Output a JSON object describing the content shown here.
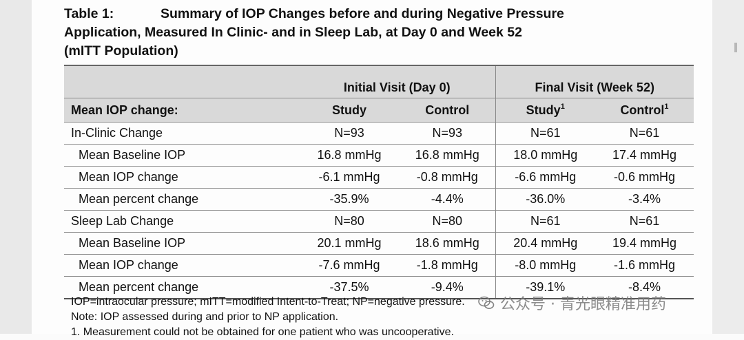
{
  "caption": {
    "number": "Table 1:",
    "lines": [
      "Summary of IOP Changes before and during Negative Pressure",
      "Application, Measured In Clinic- and in Sleep Lab, at Day 0 and Week 52",
      "(mITT Population)"
    ]
  },
  "table": {
    "group_headers": [
      "Initial Visit (Day 0)",
      "Final Visit (Week 52)"
    ],
    "row_header": "Mean IOP change:",
    "columns": [
      {
        "label": "Study",
        "sup": ""
      },
      {
        "label": "Control",
        "sup": ""
      },
      {
        "label": "Study",
        "sup": "1"
      },
      {
        "label": "Control",
        "sup": "1"
      }
    ],
    "rows": [
      {
        "label": "In-Clinic Change",
        "kind": "section",
        "cells": [
          "N=93",
          "N=93",
          "N=61",
          "N=61"
        ]
      },
      {
        "label": "Mean Baseline IOP",
        "kind": "sub",
        "cells": [
          "16.8 mmHg",
          "16.8 mmHg",
          "18.0 mmHg",
          "17.4 mmHg"
        ]
      },
      {
        "label": "Mean IOP change",
        "kind": "sub",
        "cells": [
          "-6.1 mmHg",
          "-0.8 mmHg",
          "-6.6 mmHg",
          "-0.6 mmHg"
        ]
      },
      {
        "label": "Mean percent change",
        "kind": "sub",
        "cells": [
          "-35.9%",
          "-4.4%",
          "-36.0%",
          "-3.4%"
        ]
      },
      {
        "label": "Sleep Lab Change",
        "kind": "section",
        "cells": [
          "N=80",
          "N=80",
          "N=61",
          "N=61"
        ]
      },
      {
        "label": "Mean Baseline IOP",
        "kind": "sub",
        "cells": [
          "20.1 mmHg",
          "18.6 mmHg",
          "20.4 mmHg",
          "19.4 mmHg"
        ]
      },
      {
        "label": "Mean IOP change",
        "kind": "sub",
        "cells": [
          "-7.6 mmHg",
          "-1.8 mmHg",
          "-8.0 mmHg",
          "-1.6 mmHg"
        ]
      },
      {
        "label": "Mean percent change",
        "kind": "sub",
        "cells": [
          "-37.5%",
          "-9.4%",
          "-39.1%",
          "-8.4%"
        ]
      }
    ]
  },
  "notes": [
    "IOP=intraocular pressure; mITT=modified Intent-to-Treat; NP=negative pressure.",
    "Note: IOP assessed during and prior to NP application.",
    "1. Measurement could not be obtained for one patient who was uncooperative."
  ],
  "watermark": {
    "text": "公众号 · 青光眼精准用药",
    "icon": "wechat-icon"
  }
}
